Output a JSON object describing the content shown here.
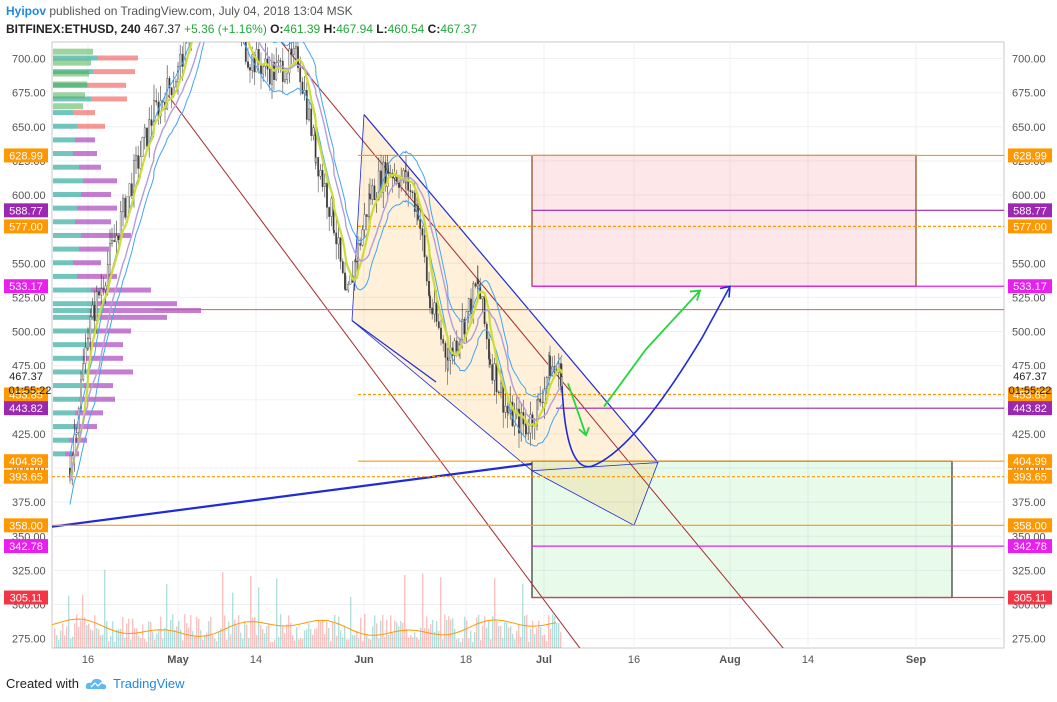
{
  "header": {
    "author": "Hyipov",
    "published": "published on TradingView.com, July 04, 2018 13:04 MSK",
    "symbol": "BITFINEX:ETHUSD, 240",
    "last": "467.37",
    "change": "+5.36 (+1.16%)",
    "o_label": "O:",
    "o_val": "461.39",
    "h_label": "H:",
    "h_val": "467.94",
    "l_label": "L:",
    "l_val": "460.54",
    "c_label": "C:",
    "c_val": "467.37"
  },
  "footer": {
    "created_with": "Created with",
    "brand": "TradingView"
  },
  "colors": {
    "orange": "#ff9800",
    "purple": "#9c27b0",
    "magenta": "#e91eef",
    "red": "#f23645",
    "blue": "#1e2bd6",
    "green": "#22d63b",
    "darkred": "#a52a2a"
  },
  "chart_data": {
    "type": "candlestick",
    "symbol": "BITFINEX:ETHUSD",
    "interval": "240",
    "ylim": [
      262,
      713
    ],
    "y_ticks": [
      275,
      300,
      325,
      350,
      375,
      400,
      425,
      450,
      475,
      500,
      525,
      550,
      575,
      600,
      625,
      650,
      675,
      700
    ],
    "y_tick_labels": [
      "275.00",
      "300.00",
      "325.00",
      "350.00",
      "375.00",
      "400.00",
      "425.00",
      "450.00",
      "475.00",
      "500.00",
      "525.00",
      "550.00",
      "575.00",
      "600.00",
      "625.00",
      "650.00",
      "675.00",
      "700.00"
    ],
    "x_ticks": [
      "16",
      "May",
      "14",
      "Jun",
      "18",
      "Jul",
      "16",
      "Aug",
      "14",
      "Sep"
    ],
    "x_tick_dates": [
      "2018-04-16",
      "2018-05-01",
      "2018-05-14",
      "2018-06-01",
      "2018-06-18",
      "2018-07-01",
      "2018-07-16",
      "2018-08-01",
      "2018-08-14",
      "2018-09-01"
    ],
    "last_price": 467.37,
    "countdown": "01:55:22",
    "price_path": [
      [
        "2018-04-13",
        400
      ],
      [
        "2018-04-16",
        500
      ],
      [
        "2018-04-20",
        560
      ],
      [
        "2018-04-24",
        620
      ],
      [
        "2018-04-27",
        660
      ],
      [
        "2018-05-01",
        690
      ],
      [
        "2018-05-05",
        760
      ],
      [
        "2018-05-09",
        740
      ],
      [
        "2018-05-13",
        700
      ],
      [
        "2018-05-17",
        690
      ],
      [
        "2018-05-21",
        700
      ],
      [
        "2018-05-24",
        630
      ],
      [
        "2018-05-27",
        580
      ],
      [
        "2018-05-29",
        520
      ],
      [
        "2018-05-31",
        560
      ],
      [
        "2018-06-02",
        600
      ],
      [
        "2018-06-05",
        620
      ],
      [
        "2018-06-08",
        610
      ],
      [
        "2018-06-10",
        590
      ],
      [
        "2018-06-12",
        520
      ],
      [
        "2018-06-15",
        480
      ],
      [
        "2018-06-17",
        500
      ],
      [
        "2018-06-20",
        535
      ],
      [
        "2018-06-22",
        480
      ],
      [
        "2018-06-25",
        440
      ],
      [
        "2018-06-28",
        430
      ],
      [
        "2018-06-30",
        445
      ],
      [
        "2018-07-02",
        475
      ],
      [
        "2018-07-04",
        467.37
      ]
    ],
    "levels": [
      {
        "price": 628.99,
        "label": "628.99",
        "color": "orange"
      },
      {
        "price": 588.77,
        "label": "588.77",
        "color": "purple"
      },
      {
        "price": 577.0,
        "label": "577.00",
        "color": "orange"
      },
      {
        "price": 533.17,
        "label": "533.17",
        "color": "magenta"
      },
      {
        "price": 453.85,
        "label": "453.85",
        "color": "orange"
      },
      {
        "price": 443.82,
        "label": "443.82",
        "color": "purple"
      },
      {
        "price": 404.99,
        "label": "404.99",
        "color": "orange"
      },
      {
        "price": 393.65,
        "label": "393.65",
        "color": "orange"
      },
      {
        "price": 358.0,
        "label": "358.00",
        "color": "orange"
      },
      {
        "price": 342.78,
        "label": "342.78",
        "color": "magenta"
      },
      {
        "price": 305.11,
        "label": "305.11",
        "color": "red"
      }
    ],
    "volume_profile_rows": [
      {
        "price": 700,
        "buy": 45,
        "sell": 40
      },
      {
        "price": 690,
        "buy": 40,
        "sell": 42
      },
      {
        "price": 680,
        "buy": 35,
        "sell": 38
      },
      {
        "price": 670,
        "buy": 38,
        "sell": 36
      },
      {
        "price": 660,
        "buy": 20,
        "sell": 22
      },
      {
        "price": 650,
        "buy": 24,
        "sell": 28
      },
      {
        "price": 640,
        "buy": 22,
        "sell": 20
      },
      {
        "price": 630,
        "buy": 20,
        "sell": 24
      },
      {
        "price": 620,
        "buy": 26,
        "sell": 22
      },
      {
        "price": 610,
        "buy": 30,
        "sell": 34
      },
      {
        "price": 600,
        "buy": 28,
        "sell": 30
      },
      {
        "price": 590,
        "buy": 24,
        "sell": 40
      },
      {
        "price": 580,
        "buy": 22,
        "sell": 36
      },
      {
        "price": 570,
        "buy": 28,
        "sell": 50
      },
      {
        "price": 560,
        "buy": 26,
        "sell": 30
      },
      {
        "price": 550,
        "buy": 20,
        "sell": 28
      },
      {
        "price": 540,
        "buy": 24,
        "sell": 40
      },
      {
        "price": 530,
        "buy": 38,
        "sell": 60
      },
      {
        "price": 520,
        "buy": 44,
        "sell": 80
      },
      {
        "price": 515,
        "buy": 48,
        "sell": 100
      },
      {
        "price": 510,
        "buy": 44,
        "sell": 70
      },
      {
        "price": 500,
        "buy": 40,
        "sell": 38
      },
      {
        "price": 490,
        "buy": 34,
        "sell": 36
      },
      {
        "price": 480,
        "buy": 30,
        "sell": 40
      },
      {
        "price": 470,
        "buy": 34,
        "sell": 46
      },
      {
        "price": 460,
        "buy": 30,
        "sell": 30
      },
      {
        "price": 450,
        "buy": 26,
        "sell": 36
      },
      {
        "price": 440,
        "buy": 22,
        "sell": 28
      },
      {
        "price": 430,
        "buy": 20,
        "sell": 24
      },
      {
        "price": 420,
        "buy": 16,
        "sell": 18
      },
      {
        "price": 410,
        "buy": 12,
        "sell": 14
      }
    ],
    "zones": [
      {
        "name": "target-box",
        "from": "2018-06-29",
        "to": "2018-09-01",
        "low": 533.17,
        "high": 628.99
      },
      {
        "name": "buy-box",
        "from": "2018-06-29",
        "to": "2018-09-07",
        "low": 305.11,
        "high": 404.99
      }
    ],
    "forecast_path": [
      [
        "2018-07-04",
        460
      ],
      [
        "2018-07-08",
        405
      ],
      [
        "2018-07-16",
        420
      ],
      [
        "2018-07-29",
        510
      ],
      [
        "2018-08-01",
        533
      ]
    ],
    "green_arrow_path": [
      [
        "2018-07-05",
        462
      ],
      [
        "2018-07-08",
        424
      ],
      [
        "2018-07-11",
        445
      ],
      [
        "2018-07-18",
        487
      ],
      [
        "2018-07-27",
        530
      ]
    ]
  }
}
